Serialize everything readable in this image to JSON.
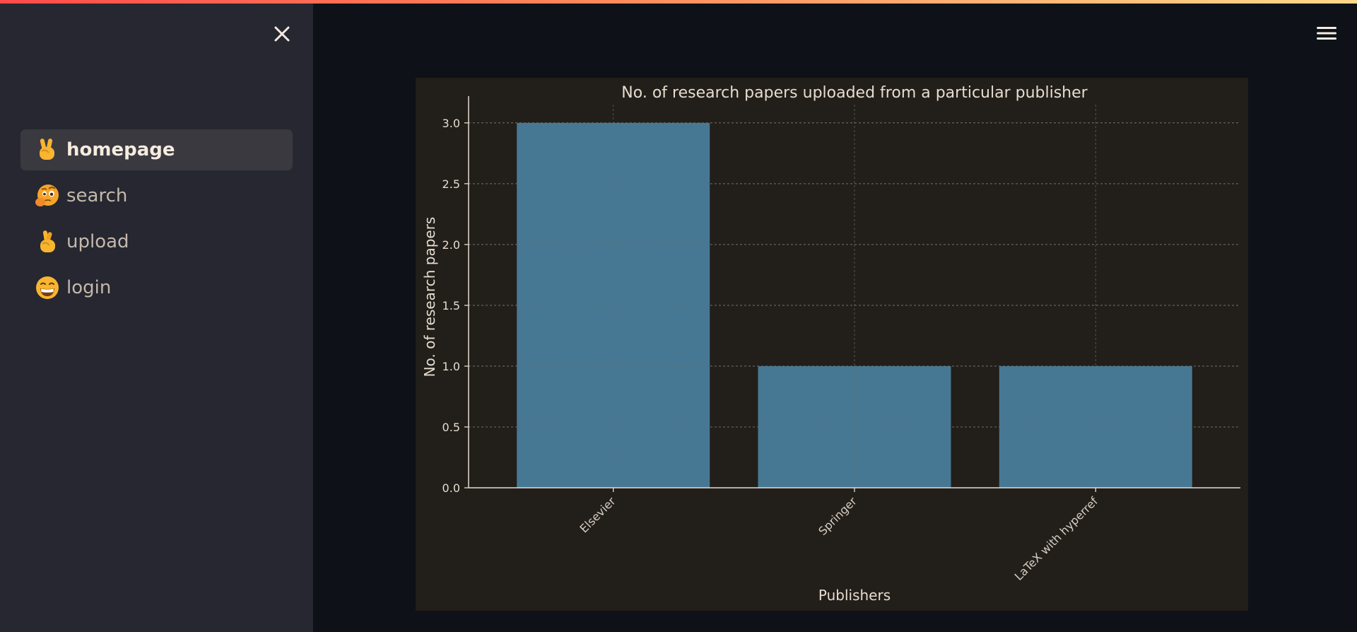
{
  "sidebar": {
    "items": [
      {
        "label": "homepage",
        "icon": "victory-hand-icon",
        "active": true
      },
      {
        "label": "search",
        "icon": "face-with-raised-eyebrow-icon",
        "active": false
      },
      {
        "label": "upload",
        "icon": "crossed-fingers-icon",
        "active": false
      },
      {
        "label": "login",
        "icon": "grinning-face-icon",
        "active": false
      }
    ]
  },
  "colors": {
    "sidebar_bg": "#262730",
    "main_bg": "#0e1117",
    "chart_bg": "#221e1a",
    "bar": "#477893",
    "text": "#e6dccf"
  },
  "chart_data": {
    "type": "bar",
    "title": "No. of research papers uploaded from a particular publisher",
    "xlabel": "Publishers",
    "ylabel": "No. of research papers",
    "categories": [
      "Elsevier",
      "Springer",
      "LaTeX with hyperref"
    ],
    "values": [
      3,
      1,
      1
    ],
    "ylim": [
      0,
      3.15
    ],
    "yticks": [
      "0.0",
      "0.5",
      "1.0",
      "1.5",
      "2.0",
      "2.5",
      "3.0"
    ],
    "grid": true,
    "legend": "none"
  }
}
